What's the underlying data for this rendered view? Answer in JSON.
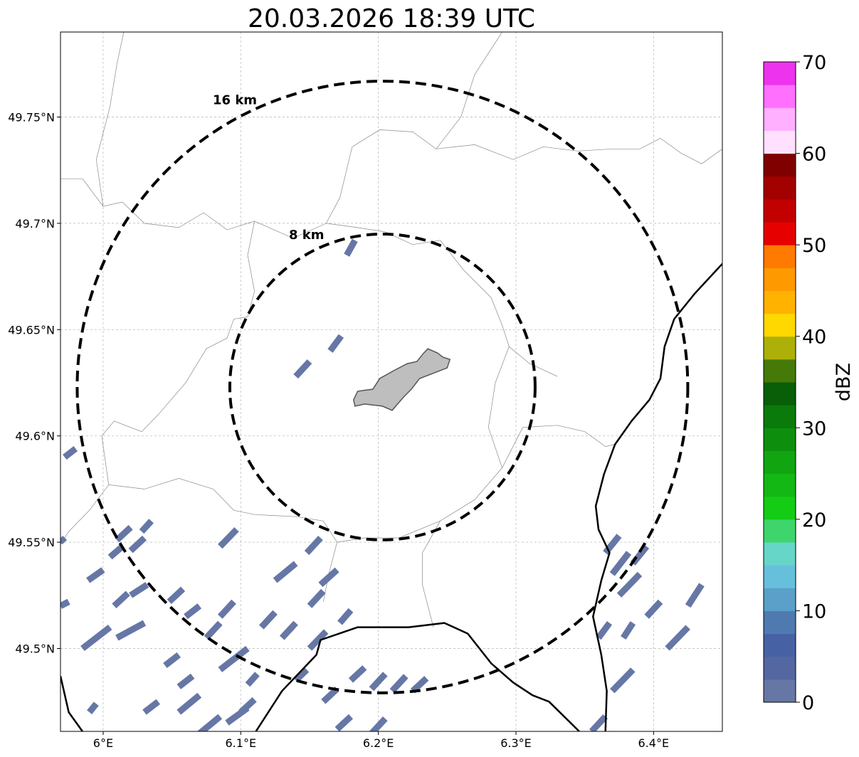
{
  "title": "20.03.2026 18:39 UTC",
  "map": {
    "projection": "PlateCarree",
    "lon_range": [
      5.969,
      6.45
    ],
    "lat_range": [
      49.461,
      49.79
    ],
    "gridlines": true,
    "x_ticks": [
      {
        "lon": 6.0,
        "label": "6°E"
      },
      {
        "lon": 6.1,
        "label": "6.1°E"
      },
      {
        "lon": 6.2,
        "label": "6.2°E"
      },
      {
        "lon": 6.3,
        "label": "6.3°E"
      },
      {
        "lon": 6.4,
        "label": "6.4°E"
      }
    ],
    "y_ticks": [
      {
        "lat": 49.5,
        "label": "49.5°N"
      },
      {
        "lat": 49.55,
        "label": "49.55°N"
      },
      {
        "lat": 49.6,
        "label": "49.6°N"
      },
      {
        "lat": 49.65,
        "label": "49.65°N"
      },
      {
        "lat": 49.7,
        "label": "49.7°N"
      },
      {
        "lat": 49.75,
        "label": "49.75°N"
      }
    ],
    "center": {
      "lon": 6.203,
      "lat": 49.623
    },
    "range_rings": [
      {
        "radius_km": 8,
        "label": "8 km"
      },
      {
        "radius_km": 16,
        "label": "16 km"
      }
    ],
    "city_polygon": {
      "fill": "#bebebe",
      "stroke": "#555555",
      "points": [
        [
          6.182,
          49.617
        ],
        [
          6.185,
          49.621
        ],
        [
          6.196,
          49.622
        ],
        [
          6.201,
          49.627
        ],
        [
          6.212,
          49.631
        ],
        [
          6.221,
          49.634
        ],
        [
          6.228,
          49.635
        ],
        [
          6.233,
          49.639
        ],
        [
          6.236,
          49.641
        ],
        [
          6.243,
          49.639
        ],
        [
          6.247,
          49.637
        ],
        [
          6.252,
          49.636
        ],
        [
          6.25,
          49.632
        ],
        [
          6.242,
          49.63
        ],
        [
          6.23,
          49.627
        ],
        [
          6.224,
          49.622
        ],
        [
          6.218,
          49.618
        ],
        [
          6.21,
          49.612
        ],
        [
          6.203,
          49.614
        ],
        [
          6.19,
          49.615
        ],
        [
          6.183,
          49.614
        ]
      ]
    },
    "national_borders": [
      {
        "name": "france-luxembourg",
        "points": [
          [
            5.969,
            49.487
          ],
          [
            5.975,
            49.47
          ],
          [
            5.985,
            49.461
          ]
        ]
      },
      {
        "name": "france-luxembourg-south",
        "points": [
          [
            6.111,
            49.461
          ],
          [
            6.13,
            49.48
          ],
          [
            6.155,
            49.497
          ],
          [
            6.158,
            49.504
          ],
          [
            6.185,
            49.51
          ],
          [
            6.222,
            49.51
          ],
          [
            6.248,
            49.512
          ],
          [
            6.265,
            49.507
          ],
          [
            6.282,
            49.493
          ],
          [
            6.298,
            49.484
          ],
          [
            6.312,
            49.478
          ],
          [
            6.324,
            49.475
          ],
          [
            6.335,
            49.468
          ],
          [
            6.346,
            49.461
          ]
        ]
      },
      {
        "name": "germany-luxembourg",
        "points": [
          [
            6.45,
            49.681
          ],
          [
            6.43,
            49.667
          ],
          [
            6.415,
            49.655
          ],
          [
            6.408,
            49.642
          ],
          [
            6.405,
            49.627
          ],
          [
            6.397,
            49.617
          ],
          [
            6.384,
            49.607
          ],
          [
            6.372,
            49.596
          ],
          [
            6.364,
            49.582
          ],
          [
            6.358,
            49.567
          ],
          [
            6.36,
            49.556
          ],
          [
            6.368,
            49.545
          ],
          [
            6.362,
            49.532
          ],
          [
            6.356,
            49.515
          ],
          [
            6.362,
            49.497
          ],
          [
            6.366,
            49.48
          ],
          [
            6.365,
            49.461
          ]
        ]
      }
    ],
    "admin_boundaries": [
      {
        "points": [
          [
            5.969,
            49.721
          ],
          [
            5.985,
            49.721
          ],
          [
            6.0,
            49.708
          ],
          [
            6.014,
            49.71
          ],
          [
            6.03,
            49.7
          ],
          [
            6.055,
            49.698
          ],
          [
            6.073,
            49.705
          ],
          [
            6.09,
            49.697
          ],
          [
            6.11,
            49.701
          ],
          [
            6.138,
            49.693
          ],
          [
            6.162,
            49.7
          ],
          [
            6.172,
            49.712
          ],
          [
            6.181,
            49.736
          ],
          [
            6.201,
            49.744
          ],
          [
            6.225,
            49.743
          ],
          [
            6.242,
            49.735
          ],
          [
            6.27,
            49.737
          ],
          [
            6.298,
            49.73
          ],
          [
            6.32,
            49.736
          ],
          [
            6.345,
            49.734
          ],
          [
            6.37,
            49.735
          ],
          [
            6.39,
            49.735
          ],
          [
            6.405,
            49.74
          ],
          [
            6.42,
            49.733
          ],
          [
            6.435,
            49.728
          ],
          [
            6.45,
            49.735
          ]
        ]
      },
      {
        "points": [
          [
            6.11,
            49.701
          ],
          [
            6.105,
            49.685
          ],
          [
            6.11,
            49.668
          ],
          [
            6.105,
            49.656
          ],
          [
            6.095,
            49.655
          ],
          [
            6.09,
            49.646
          ],
          [
            6.075,
            49.641
          ],
          [
            6.06,
            49.625
          ],
          [
            6.04,
            49.61
          ],
          [
            6.028,
            49.602
          ],
          [
            6.008,
            49.607
          ],
          [
            5.999,
            49.6
          ],
          [
            6.004,
            49.577
          ],
          [
            5.99,
            49.565
          ],
          [
            5.975,
            49.555
          ],
          [
            5.969,
            49.549
          ]
        ]
      },
      {
        "points": [
          [
            6.004,
            49.577
          ],
          [
            6.03,
            49.575
          ],
          [
            6.055,
            49.58
          ],
          [
            6.08,
            49.575
          ],
          [
            6.095,
            49.565
          ],
          [
            6.11,
            49.563
          ],
          [
            6.14,
            49.562
          ],
          [
            6.16,
            49.56
          ],
          [
            6.17,
            49.55
          ],
          [
            6.164,
            49.535
          ],
          [
            6.16,
            49.522
          ]
        ]
      },
      {
        "points": [
          [
            6.17,
            49.55
          ],
          [
            6.19,
            49.552
          ],
          [
            6.215,
            49.552
          ],
          [
            6.245,
            49.56
          ],
          [
            6.27,
            49.57
          ],
          [
            6.29,
            49.585
          ],
          [
            6.305,
            49.604
          ],
          [
            6.33,
            49.605
          ],
          [
            6.35,
            49.602
          ],
          [
            6.365,
            49.595
          ],
          [
            6.372,
            49.596
          ]
        ]
      },
      {
        "points": [
          [
            6.162,
            49.7
          ],
          [
            6.185,
            49.698
          ],
          [
            6.205,
            49.696
          ],
          [
            6.225,
            49.69
          ],
          [
            6.245,
            49.692
          ],
          [
            6.262,
            49.678
          ],
          [
            6.282,
            49.665
          ],
          [
            6.29,
            49.652
          ],
          [
            6.295,
            49.642
          ],
          [
            6.31,
            49.634
          ],
          [
            6.33,
            49.628
          ]
        ]
      },
      {
        "points": [
          [
            6.295,
            49.642
          ],
          [
            6.285,
            49.625
          ],
          [
            6.28,
            49.604
          ],
          [
            6.29,
            49.585
          ]
        ]
      },
      {
        "points": [
          [
            6.245,
            49.56
          ],
          [
            6.232,
            49.545
          ],
          [
            6.232,
            49.53
          ],
          [
            6.24,
            49.51
          ]
        ]
      },
      {
        "points": [
          [
            6.0,
            49.708
          ],
          [
            5.995,
            49.73
          ],
          [
            6.005,
            49.755
          ],
          [
            6.01,
            49.775
          ],
          [
            6.015,
            49.79
          ]
        ]
      },
      {
        "points": [
          [
            6.242,
            49.735
          ],
          [
            6.26,
            49.75
          ],
          [
            6.27,
            49.77
          ],
          [
            6.29,
            49.79
          ]
        ]
      }
    ]
  },
  "radar": {
    "fill_color": "#6677a6",
    "echoes": [
      [
        [
          5.972,
          49.59
        ],
        [
          5.98,
          49.594
        ]
      ],
      [
        [
          5.969,
          49.552
        ],
        [
          5.972,
          49.55
        ]
      ],
      [
        [
          5.989,
          49.532
        ],
        [
          6.0,
          49.537
        ]
      ],
      [
        [
          6.005,
          49.543
        ],
        [
          6.014,
          49.548
        ]
      ],
      [
        [
          6.01,
          49.551
        ],
        [
          6.02,
          49.557
        ]
      ],
      [
        [
          6.02,
          49.546
        ],
        [
          6.03,
          49.552
        ]
      ],
      [
        [
          6.028,
          49.555
        ],
        [
          6.035,
          49.56
        ]
      ],
      [
        [
          6.02,
          49.525
        ],
        [
          6.032,
          49.53
        ]
      ],
      [
        [
          6.008,
          49.52
        ],
        [
          6.018,
          49.526
        ]
      ],
      [
        [
          5.969,
          49.52
        ],
        [
          5.975,
          49.522
        ]
      ],
      [
        [
          5.985,
          49.5
        ],
        [
          6.005,
          49.51
        ]
      ],
      [
        [
          6.01,
          49.505
        ],
        [
          6.03,
          49.512
        ]
      ],
      [
        [
          6.048,
          49.522
        ],
        [
          6.058,
          49.528
        ]
      ],
      [
        [
          6.06,
          49.515
        ],
        [
          6.07,
          49.52
        ]
      ],
      [
        [
          6.075,
          49.505
        ],
        [
          6.085,
          49.512
        ]
      ],
      [
        [
          6.085,
          49.515
        ],
        [
          6.095,
          49.522
        ]
      ],
      [
        [
          6.085,
          49.49
        ],
        [
          6.105,
          49.5
        ]
      ],
      [
        [
          6.045,
          49.492
        ],
        [
          6.055,
          49.497
        ]
      ],
      [
        [
          6.055,
          49.482
        ],
        [
          6.065,
          49.487
        ]
      ],
      [
        [
          5.99,
          49.47
        ],
        [
          5.995,
          49.474
        ]
      ],
      [
        [
          6.03,
          49.47
        ],
        [
          6.04,
          49.475
        ]
      ],
      [
        [
          6.055,
          49.47
        ],
        [
          6.07,
          49.478
        ]
      ],
      [
        [
          6.07,
          49.46
        ],
        [
          6.085,
          49.468
        ]
      ],
      [
        [
          6.09,
          49.465
        ],
        [
          6.105,
          49.472
        ]
      ],
      [
        [
          6.1,
          49.47
        ],
        [
          6.11,
          49.476
        ]
      ],
      [
        [
          6.105,
          49.483
        ],
        [
          6.112,
          49.488
        ]
      ],
      [
        [
          6.115,
          49.51
        ],
        [
          6.125,
          49.517
        ]
      ],
      [
        [
          6.13,
          49.505
        ],
        [
          6.14,
          49.512
        ]
      ],
      [
        [
          6.15,
          49.52
        ],
        [
          6.16,
          49.527
        ]
      ],
      [
        [
          6.15,
          49.5
        ],
        [
          6.162,
          49.508
        ]
      ],
      [
        [
          6.14,
          49.485
        ],
        [
          6.148,
          49.49
        ]
      ],
      [
        [
          6.16,
          49.475
        ],
        [
          6.17,
          49.481
        ]
      ],
      [
        [
          6.17,
          49.462
        ],
        [
          6.18,
          49.468
        ]
      ],
      [
        [
          6.195,
          49.46
        ],
        [
          6.205,
          49.467
        ]
      ],
      [
        [
          6.085,
          49.548
        ],
        [
          6.097,
          49.556
        ]
      ],
      [
        [
          6.125,
          49.532
        ],
        [
          6.14,
          49.54
        ]
      ],
      [
        [
          6.148,
          49.545
        ],
        [
          6.158,
          49.552
        ]
      ],
      [
        [
          6.158,
          49.53
        ],
        [
          6.17,
          49.537
        ]
      ],
      [
        [
          6.172,
          49.512
        ],
        [
          6.18,
          49.518
        ]
      ],
      [
        [
          6.18,
          49.485
        ],
        [
          6.19,
          49.491
        ]
      ],
      [
        [
          6.195,
          49.481
        ],
        [
          6.205,
          49.488
        ]
      ],
      [
        [
          6.21,
          49.48
        ],
        [
          6.22,
          49.487
        ]
      ],
      [
        [
          6.225,
          49.48
        ],
        [
          6.235,
          49.486
        ]
      ],
      [
        [
          6.14,
          49.628
        ],
        [
          6.15,
          49.635
        ]
      ],
      [
        [
          6.165,
          49.64
        ],
        [
          6.173,
          49.647
        ]
      ],
      [
        [
          6.177,
          49.685
        ],
        [
          6.183,
          49.692
        ]
      ],
      [
        [
          6.37,
          49.535
        ],
        [
          6.382,
          49.545
        ]
      ],
      [
        [
          6.365,
          49.545
        ],
        [
          6.375,
          49.553
        ]
      ],
      [
        [
          6.375,
          49.525
        ],
        [
          6.39,
          49.535
        ]
      ],
      [
        [
          6.385,
          49.54
        ],
        [
          6.395,
          49.548
        ]
      ],
      [
        [
          6.36,
          49.505
        ],
        [
          6.368,
          49.512
        ]
      ],
      [
        [
          6.378,
          49.505
        ],
        [
          6.385,
          49.512
        ]
      ],
      [
        [
          6.395,
          49.515
        ],
        [
          6.405,
          49.522
        ]
      ],
      [
        [
          6.41,
          49.5
        ],
        [
          6.425,
          49.51
        ]
      ],
      [
        [
          6.425,
          49.52
        ],
        [
          6.435,
          49.53
        ]
      ],
      [
        [
          6.37,
          49.48
        ],
        [
          6.385,
          49.49
        ]
      ],
      [
        [
          6.355,
          49.461
        ],
        [
          6.365,
          49.468
        ]
      ]
    ]
  },
  "colorbar": {
    "label": "dBZ",
    "min": 0,
    "max": 70,
    "ticks": [
      {
        "value": 0,
        "label": "0"
      },
      {
        "value": 10,
        "label": "10"
      },
      {
        "value": 20,
        "label": "20"
      },
      {
        "value": 30,
        "label": "30"
      },
      {
        "value": 40,
        "label": "40"
      },
      {
        "value": 50,
        "label": "50"
      },
      {
        "value": 60,
        "label": "60"
      },
      {
        "value": 70,
        "label": "70"
      }
    ],
    "colors": [
      "#6677a6",
      "#5567a1",
      "#4762a4",
      "#4f7ab0",
      "#5aa0c8",
      "#66c0dc",
      "#66d6c8",
      "#3ed66c",
      "#14cc14",
      "#14b814",
      "#11a611",
      "#0d8f0d",
      "#0a7a0a",
      "#085f08",
      "#457a08",
      "#adb008",
      "#ffd800",
      "#ffb300",
      "#ff9900",
      "#ff7a00",
      "#e60000",
      "#c20000",
      "#a30000",
      "#800000",
      "#ffe0ff",
      "#ffb0ff",
      "#ff70ff",
      "#ee33ee"
    ]
  }
}
